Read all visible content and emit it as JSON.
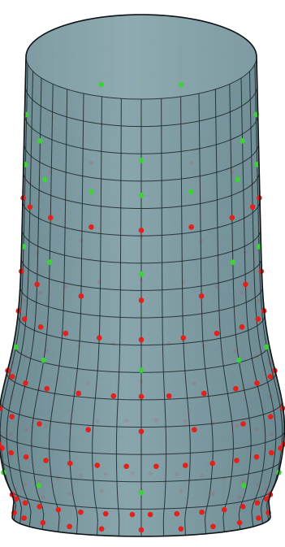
{
  "figure": {
    "surface_color": "#7f9ea6",
    "surface_shadow_color": "#5f7f88",
    "rim_inner_color": "#9bb5bb",
    "wire_color": "#1c2428",
    "outline_color": "#0f1417",
    "marker_colors": {
      "green": "#3fd13a",
      "red": "#e2211b"
    },
    "mesh": {
      "meridians": 36,
      "parallels": 16
    },
    "marker_rings": [
      {
        "t": 0.14,
        "color": "green",
        "angles": [
          -160,
          -100,
          -60,
          0,
          60,
          100,
          160
        ]
      },
      {
        "t": 0.22,
        "color": "green",
        "angles": [
          -80,
          -55,
          -25,
          0,
          25,
          55,
          80
        ]
      },
      {
        "t": 0.3,
        "color": "red",
        "angles": [
          -85,
          -70,
          -50,
          -25,
          0,
          25,
          50,
          70,
          85
        ]
      },
      {
        "t": 0.4,
        "color": "green",
        "angles": [
          -80,
          -50,
          0,
          50,
          80
        ]
      },
      {
        "t": 0.46,
        "color": "red",
        "angles": [
          -85,
          -60,
          -30,
          0,
          30,
          60,
          85
        ]
      },
      {
        "t": 0.55,
        "color": "red",
        "angles": [
          -88,
          -72,
          -55,
          -38,
          -20,
          0,
          20,
          38,
          55,
          72,
          88
        ]
      },
      {
        "t": 0.62,
        "color": "green",
        "angles": [
          -80,
          -50,
          0,
          50,
          80
        ]
      },
      {
        "t": 0.68,
        "color": "red",
        "angles": [
          -88,
          -75,
          -60,
          -45,
          -28,
          -12,
          0,
          12,
          28,
          45,
          60,
          75,
          88
        ]
      },
      {
        "t": 0.76,
        "color": "red",
        "angles": [
          -86,
          -66,
          -46,
          -22,
          0,
          22,
          46,
          66,
          86
        ]
      },
      {
        "t": 0.84,
        "color": "red",
        "angles": [
          -88,
          -78,
          -66,
          -54,
          -42,
          -30,
          -18,
          -6,
          6,
          18,
          30,
          42,
          54,
          66,
          78,
          88
        ]
      },
      {
        "t": 0.9,
        "color": "green",
        "angles": [
          -86,
          -48,
          0,
          48,
          86
        ]
      },
      {
        "t": 0.95,
        "color": "red",
        "angles": [
          -88,
          -76,
          -64,
          -52,
          -40,
          -28,
          -16,
          -4,
          4,
          16,
          28,
          40,
          52,
          64,
          76,
          88
        ]
      },
      {
        "t": 0.985,
        "color": "red",
        "angles": [
          -82,
          -66,
          -50,
          -34,
          -18,
          0,
          18,
          34,
          50,
          66,
          82
        ]
      }
    ]
  }
}
